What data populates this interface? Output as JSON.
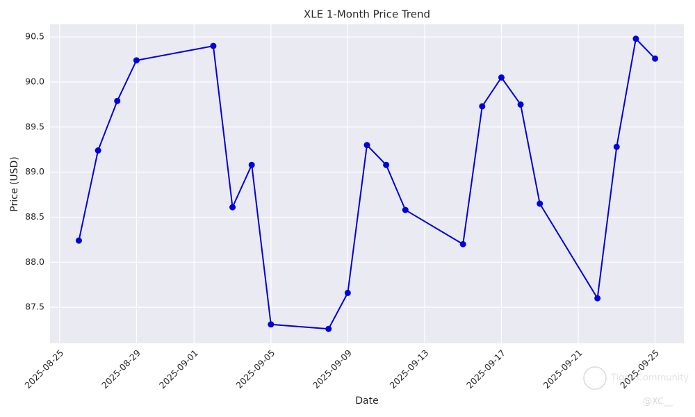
{
  "chart_data": {
    "type": "line",
    "title": "XLE 1-Month Price Trend",
    "x_label": "Date",
    "y_label": "Price (USD)",
    "x": [
      "2025-08-26",
      "2025-08-27",
      "2025-08-28",
      "2025-08-29",
      "2025-09-02",
      "2025-09-03",
      "2025-09-04",
      "2025-09-05",
      "2025-09-08",
      "2025-09-09",
      "2025-09-10",
      "2025-09-11",
      "2025-09-12",
      "2025-09-15",
      "2025-09-16",
      "2025-09-17",
      "2025-09-18",
      "2025-09-19",
      "2025-09-22",
      "2025-09-23",
      "2025-09-24",
      "2025-09-25"
    ],
    "values": [
      88.24,
      89.24,
      89.79,
      90.24,
      90.4,
      88.61,
      89.08,
      87.31,
      87.26,
      87.66,
      89.3,
      89.08,
      88.58,
      88.2,
      89.73,
      90.05,
      89.75,
      88.65,
      87.6,
      89.28,
      90.48,
      90.26
    ],
    "color": "#0000d8",
    "ylim": [
      87.1,
      90.64
    ],
    "yticks": [
      87.5,
      {
        "value": 88,
        "label": "88.0"
      },
      88.5,
      {
        "value": 89,
        "label": "89.0"
      },
      89.5,
      {
        "value": 90,
        "label": "90.0"
      },
      90.5
    ],
    "xticks": [
      "2025-08-25",
      "2025-08-29",
      "2025-09-01",
      "2025-09-05",
      "2025-09-09",
      "2025-09-13",
      "2025-09-17",
      "2025-09-21",
      "2025-09-25"
    ],
    "grid": true,
    "watermark": [
      "Tiger Community",
      "@XC__"
    ]
  }
}
